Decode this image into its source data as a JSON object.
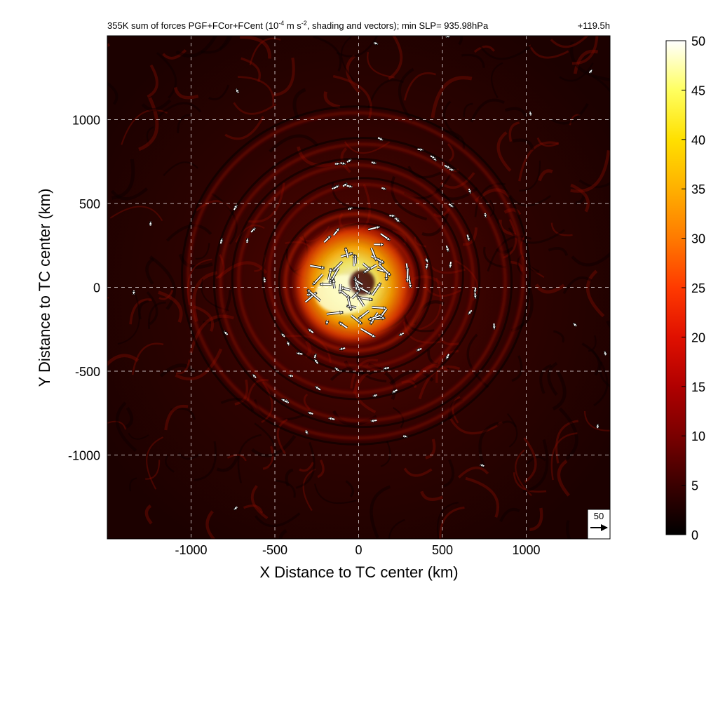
{
  "chart_data": {
    "type": "heatmap",
    "title": "355K sum of forces PGF+FCor+FCent (10",
    "title_exp": "-4",
    "title_mid": " m s",
    "title_exp2": "-2",
    "title_rest": ", shading and vectors); min SLP= 935.98hPa",
    "title_time": "+119.5h",
    "xlabel": "X Distance to TC center (km)",
    "ylabel": "Y Distance to TC center (km)",
    "xlim": [
      -1500,
      1500
    ],
    "ylim": [
      -1500,
      1500
    ],
    "x_ticks": [
      -1000,
      -500,
      0,
      500,
      1000
    ],
    "y_ticks": [
      -1000,
      -500,
      0,
      500,
      1000
    ],
    "grid": true,
    "colorbar": {
      "min": 0,
      "max": 50,
      "ticks": [
        0,
        5,
        10,
        15,
        20,
        25,
        30,
        35,
        40,
        45,
        50
      ],
      "colors": [
        "#000000",
        "#3a0000",
        "#7a0000",
        "#b00000",
        "#e01000",
        "#ff3a00",
        "#ff7a00",
        "#ffb000",
        "#ffe000",
        "#ffff60",
        "#ffffff"
      ]
    },
    "reference_vector": {
      "value": "50"
    },
    "features": {
      "center_x": 0,
      "center_y": 50,
      "core_max": 50,
      "rings_km": [
        170,
        300,
        420,
        560,
        700,
        850,
        1000
      ]
    }
  }
}
